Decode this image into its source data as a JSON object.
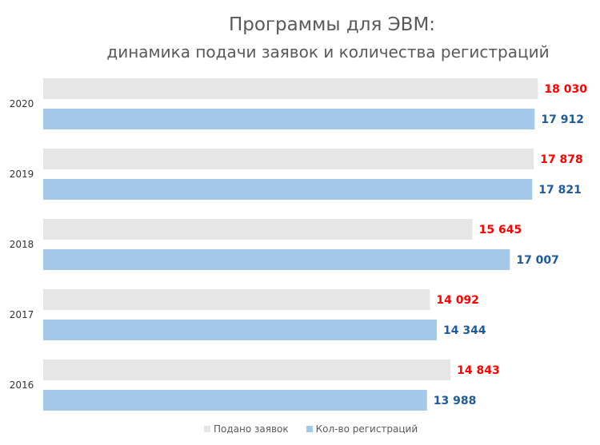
{
  "chart_data": {
    "type": "bar",
    "orientation": "horizontal",
    "title": "Программы для ЭВМ:",
    "subtitle": "динамика подачи заявок и количества регистраций",
    "categories": [
      "2020",
      "2019",
      "2018",
      "2017",
      "2016"
    ],
    "series": [
      {
        "name": "Подано заявок",
        "values": [
          18030,
          17878,
          15645,
          14092,
          14843
        ],
        "labels": [
          "18 030",
          "17 878",
          "15 645",
          "14 092",
          "14 843"
        ],
        "color": "#e6e6e6",
        "label_color": "#ff0000"
      },
      {
        "name": "Кол-во регистраций",
        "values": [
          17912,
          17821,
          17007,
          14344,
          13988
        ],
        "labels": [
          "17 912",
          "17 821",
          "17 007",
          "14 344",
          "13 988"
        ],
        "color": "#a4c8e8",
        "label_color": "#1f5b99"
      }
    ],
    "xlim": [
      0,
      20000
    ],
    "grid": false,
    "legend": "bottom"
  }
}
